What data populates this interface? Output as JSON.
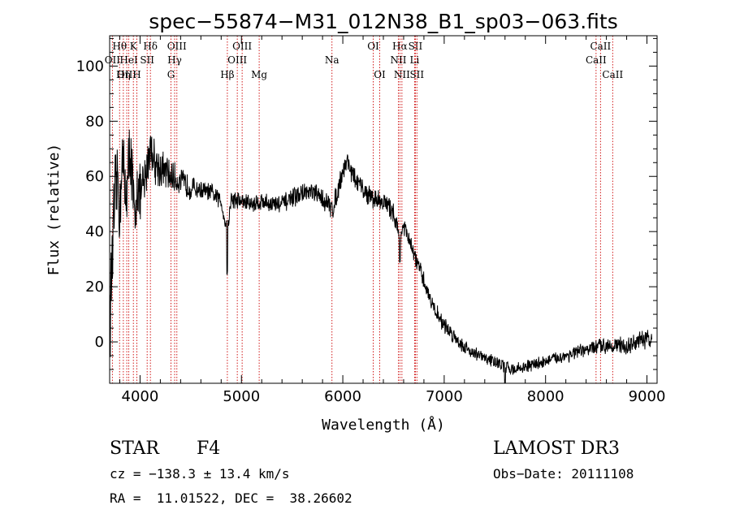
{
  "chart_data": {
    "type": "line",
    "title": "spec−55874−M31_012N38_B1_sp03−063.fits",
    "xlabel": "Wavelength (Å)",
    "ylabel": "Flux (relative)",
    "xlim": [
      3700,
      9100
    ],
    "ylim": [
      -15,
      111
    ],
    "xticks": [
      4000,
      5000,
      6000,
      7000,
      8000,
      9000
    ],
    "yticks": [
      0,
      20,
      40,
      60,
      80,
      100
    ],
    "grid": false,
    "line_color": "#000000",
    "marker_color": "#cc0000",
    "spectrum_anchors": [
      [
        3700,
        5
      ],
      [
        3720,
        25
      ],
      [
        3750,
        50
      ],
      [
        3780,
        60
      ],
      [
        3800,
        45
      ],
      [
        3820,
        70
      ],
      [
        3850,
        55
      ],
      [
        3880,
        58
      ],
      [
        3900,
        72
      ],
      [
        3930,
        55
      ],
      [
        3950,
        38
      ],
      [
        3970,
        60
      ],
      [
        4000,
        52
      ],
      [
        4050,
        58
      ],
      [
        4100,
        72
      ],
      [
        4150,
        65
      ],
      [
        4200,
        63
      ],
      [
        4300,
        60
      ],
      [
        4400,
        58
      ],
      [
        4500,
        56
      ],
      [
        4600,
        55
      ],
      [
        4700,
        54
      ],
      [
        4800,
        51
      ],
      [
        4860,
        40
      ],
      [
        4900,
        52
      ],
      [
        5000,
        51
      ],
      [
        5100,
        50
      ],
      [
        5200,
        51
      ],
      [
        5300,
        50
      ],
      [
        5400,
        50
      ],
      [
        5500,
        52
      ],
      [
        5600,
        54
      ],
      [
        5700,
        54
      ],
      [
        5800,
        52
      ],
      [
        5900,
        48
      ],
      [
        5950,
        55
      ],
      [
        6000,
        62
      ],
      [
        6050,
        66
      ],
      [
        6100,
        60
      ],
      [
        6200,
        55
      ],
      [
        6300,
        52
      ],
      [
        6400,
        51
      ],
      [
        6500,
        47
      ],
      [
        6560,
        38
      ],
      [
        6600,
        42
      ],
      [
        6700,
        32
      ],
      [
        6800,
        22
      ],
      [
        6900,
        12
      ],
      [
        7000,
        6
      ],
      [
        7100,
        2
      ],
      [
        7200,
        -2
      ],
      [
        7300,
        -4
      ],
      [
        7400,
        -6
      ],
      [
        7500,
        -7
      ],
      [
        7600,
        -9
      ],
      [
        7700,
        -10
      ],
      [
        7800,
        -9
      ],
      [
        7900,
        -8
      ],
      [
        8000,
        -7
      ],
      [
        8100,
        -6
      ],
      [
        8200,
        -5
      ],
      [
        8300,
        -4
      ],
      [
        8400,
        -3
      ],
      [
        8500,
        -2
      ],
      [
        8600,
        -1
      ],
      [
        8700,
        -1
      ],
      [
        8800,
        -2
      ],
      [
        8900,
        0
      ],
      [
        9000,
        1
      ],
      [
        9050,
        0
      ]
    ],
    "noise_profile": [
      [
        3700,
        14
      ],
      [
        4000,
        10
      ],
      [
        4200,
        6
      ],
      [
        4600,
        3
      ],
      [
        5500,
        3
      ],
      [
        6000,
        3.5
      ],
      [
        6500,
        3
      ],
      [
        7000,
        2.5
      ],
      [
        7500,
        2
      ],
      [
        8000,
        2
      ],
      [
        8500,
        2.5
      ],
      [
        9050,
        3
      ]
    ],
    "features": [
      {
        "x": 7600,
        "dip": -22
      },
      {
        "x": 4860,
        "dip": -14
      },
      {
        "x": 6563,
        "dip": -10
      }
    ],
    "line_markers": [
      {
        "label": "Hθ",
        "x": 3798,
        "row": 0
      },
      {
        "label": "OII",
        "x": 3727,
        "row": 1
      },
      {
        "label": "OIII",
        "x": 3869,
        "row": 2
      },
      {
        "label": "K",
        "x": 3934,
        "row": 0
      },
      {
        "label": "HeI",
        "x": 3889,
        "row": 1
      },
      {
        "label": "Hη",
        "x": 3835,
        "row": 2
      },
      {
        "label": "Hδ",
        "x": 4102,
        "row": 0
      },
      {
        "label": "SII",
        "x": 4070,
        "row": 1
      },
      {
        "label": "H",
        "x": 3968,
        "row": 2
      },
      {
        "label": "OIII",
        "x": 4363,
        "row": 0
      },
      {
        "label": "Hγ",
        "x": 4341,
        "row": 1
      },
      {
        "label": "G",
        "x": 4305,
        "row": 2
      },
      {
        "label": "Hβ",
        "x": 4861,
        "row": 2
      },
      {
        "label": "OIII",
        "x": 5007,
        "row": 0
      },
      {
        "label": "OIII",
        "x": 4959,
        "row": 1
      },
      {
        "label": "Mg",
        "x": 5175,
        "row": 2
      },
      {
        "label": "Na",
        "x": 5893,
        "row": 1
      },
      {
        "label": "OI",
        "x": 6300,
        "row": 0
      },
      {
        "label": "OI",
        "x": 6364,
        "row": 2
      },
      {
        "label": "Hα",
        "x": 6563,
        "row": 0
      },
      {
        "label": "SII",
        "x": 6716,
        "row": 0
      },
      {
        "label": "NII",
        "x": 6548,
        "row": 1
      },
      {
        "label": "Li",
        "x": 6708,
        "row": 1
      },
      {
        "label": "NII",
        "x": 6583,
        "row": 2
      },
      {
        "label": "SII",
        "x": 6731,
        "row": 2
      },
      {
        "label": "CaII",
        "x": 8542,
        "row": 0
      },
      {
        "label": "CaII",
        "x": 8498,
        "row": 1
      },
      {
        "label": "CaII",
        "x": 8662,
        "row": 2
      }
    ]
  },
  "info": {
    "object_class": "STAR",
    "subclass": "F4",
    "survey": "LAMOST DR3",
    "redshift": "cz = −138.3 ± 13.4 km/s",
    "obs_date": "Obs−Date: 20111108",
    "coords": "RA =  11.01522, DEC =  38.26602"
  }
}
